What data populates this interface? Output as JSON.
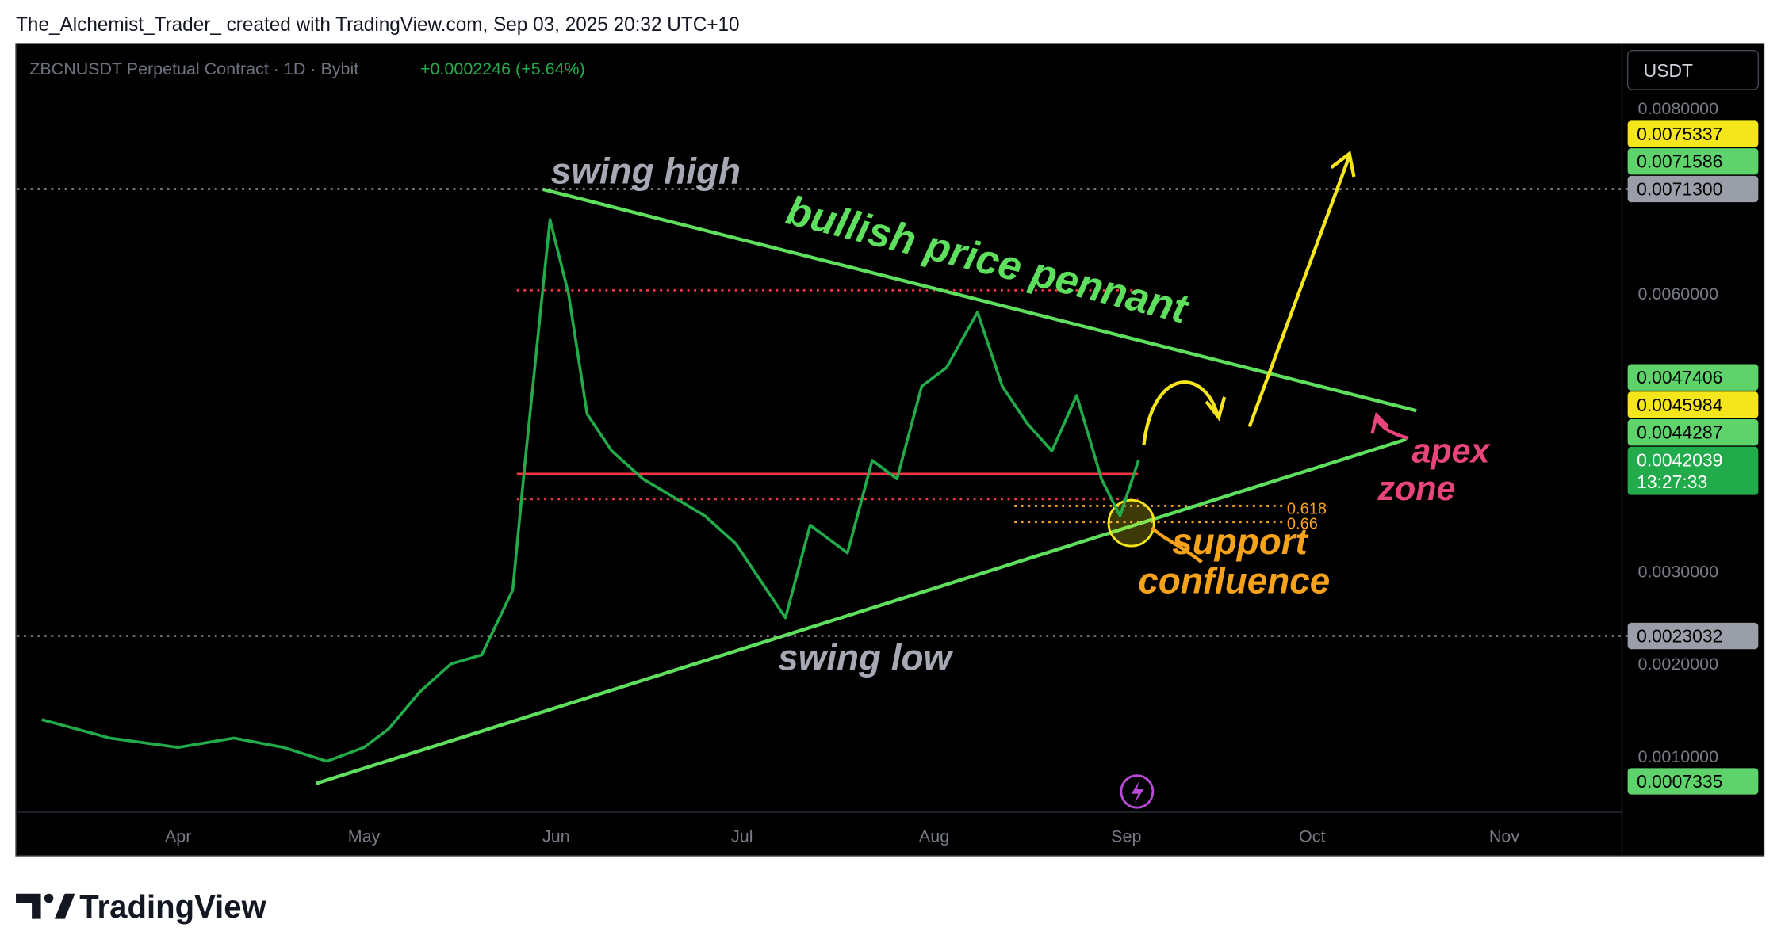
{
  "chart_data": {
    "type": "line",
    "attribution": "The_Alchemist_Trader_ created with TradingView.com, Sep 03, 2025 20:32 UTC+10",
    "title": "ZBCNUSDT Perpetual Contract · 1D · Bybit",
    "subtitle": "+0.0002246 (+5.64%)",
    "currency": "USDT",
    "brand": "TradingView",
    "color": "#22ab4a",
    "x": [
      69,
      80,
      91,
      100,
      108,
      115,
      121,
      125,
      130,
      135,
      140,
      145,
      147,
      149,
      151,
      154,
      157,
      161,
      166,
      171,
      176,
      181,
      186,
      189,
      193,
      199,
      203,
      207,
      211,
      215,
      220,
      224,
      228,
      232,
      236,
      240,
      243,
      246
    ],
    "values": [
      0.0014,
      0.0012,
      0.0011,
      0.0012,
      0.0011,
      0.00095,
      0.0011,
      0.0013,
      0.0017,
      0.002,
      0.0021,
      0.0028,
      0.0042,
      0.0055,
      0.0068,
      0.006,
      0.0047,
      0.0043,
      0.004,
      0.0038,
      0.0036,
      0.0033,
      0.0028,
      0.0025,
      0.0035,
      0.0032,
      0.0042,
      0.004,
      0.005,
      0.0052,
      0.0058,
      0.005,
      0.0046,
      0.0043,
      0.0049,
      0.004,
      0.0036,
      0.0042039
    ],
    "xlim": [
      65,
      324
    ],
    "xticks": [
      {
        "value": 91,
        "label": "Apr"
      },
      {
        "value": 121,
        "label": "May"
      },
      {
        "value": 152,
        "label": "Jun"
      },
      {
        "value": 182,
        "label": "Jul"
      },
      {
        "value": 213,
        "label": "Aug"
      },
      {
        "value": 244,
        "label": "Sep"
      },
      {
        "value": 274,
        "label": "Oct"
      },
      {
        "value": 305,
        "label": "Nov"
      }
    ],
    "ylim": [
      0.0004,
      0.0087
    ],
    "yticks": [
      {
        "value": 0.008,
        "label": "0.0080000"
      },
      {
        "value": 0.006,
        "label": "0.0060000"
      },
      {
        "value": 0.003,
        "label": "0.0030000"
      },
      {
        "value": 0.002,
        "label": "0.0020000"
      },
      {
        "value": 0.001,
        "label": "0.0010000"
      }
    ],
    "price_labels": [
      {
        "value": 0.0075337,
        "label": "0.0075337",
        "color": "#f5e61c",
        "text_color": "#000000"
      },
      {
        "value": 0.0071586,
        "label": "0.0071586",
        "color": "#5fd36b",
        "text_color": "#000000"
      },
      {
        "value": 0.00713,
        "label": "0.0071300",
        "color": "#9a9ea8",
        "text_color": "#000000",
        "dotted_line": true
      },
      {
        "value": 0.0047406,
        "label": "0.0047406",
        "color": "#5fd36b",
        "text_color": "#000000"
      },
      {
        "value": 0.0045984,
        "label": "0.0045984",
        "color": "#f5e61c",
        "text_color": "#000000"
      },
      {
        "value": 0.0044287,
        "label": "0.0044287",
        "color": "#5fd36b",
        "text_color": "#000000"
      },
      {
        "value": 0.0042039,
        "label": "0.0042039",
        "sublabel": "13:27:33",
        "color": "#22ab4a",
        "text_color": "#ffffff"
      },
      {
        "value": 0.0023032,
        "label": "0.0023032",
        "color": "#9a9ea8",
        "text_color": "#000000",
        "dotted_line": true
      },
      {
        "value": 0.0007335,
        "label": "0.0007335",
        "color": "#5fd36b",
        "text_color": "#000000"
      }
    ],
    "annotations": [
      "swing high",
      "bullish price pennant",
      "swing low",
      "apex",
      "zone",
      "support",
      "confluence",
      "0.618",
      "0.66"
    ]
  }
}
